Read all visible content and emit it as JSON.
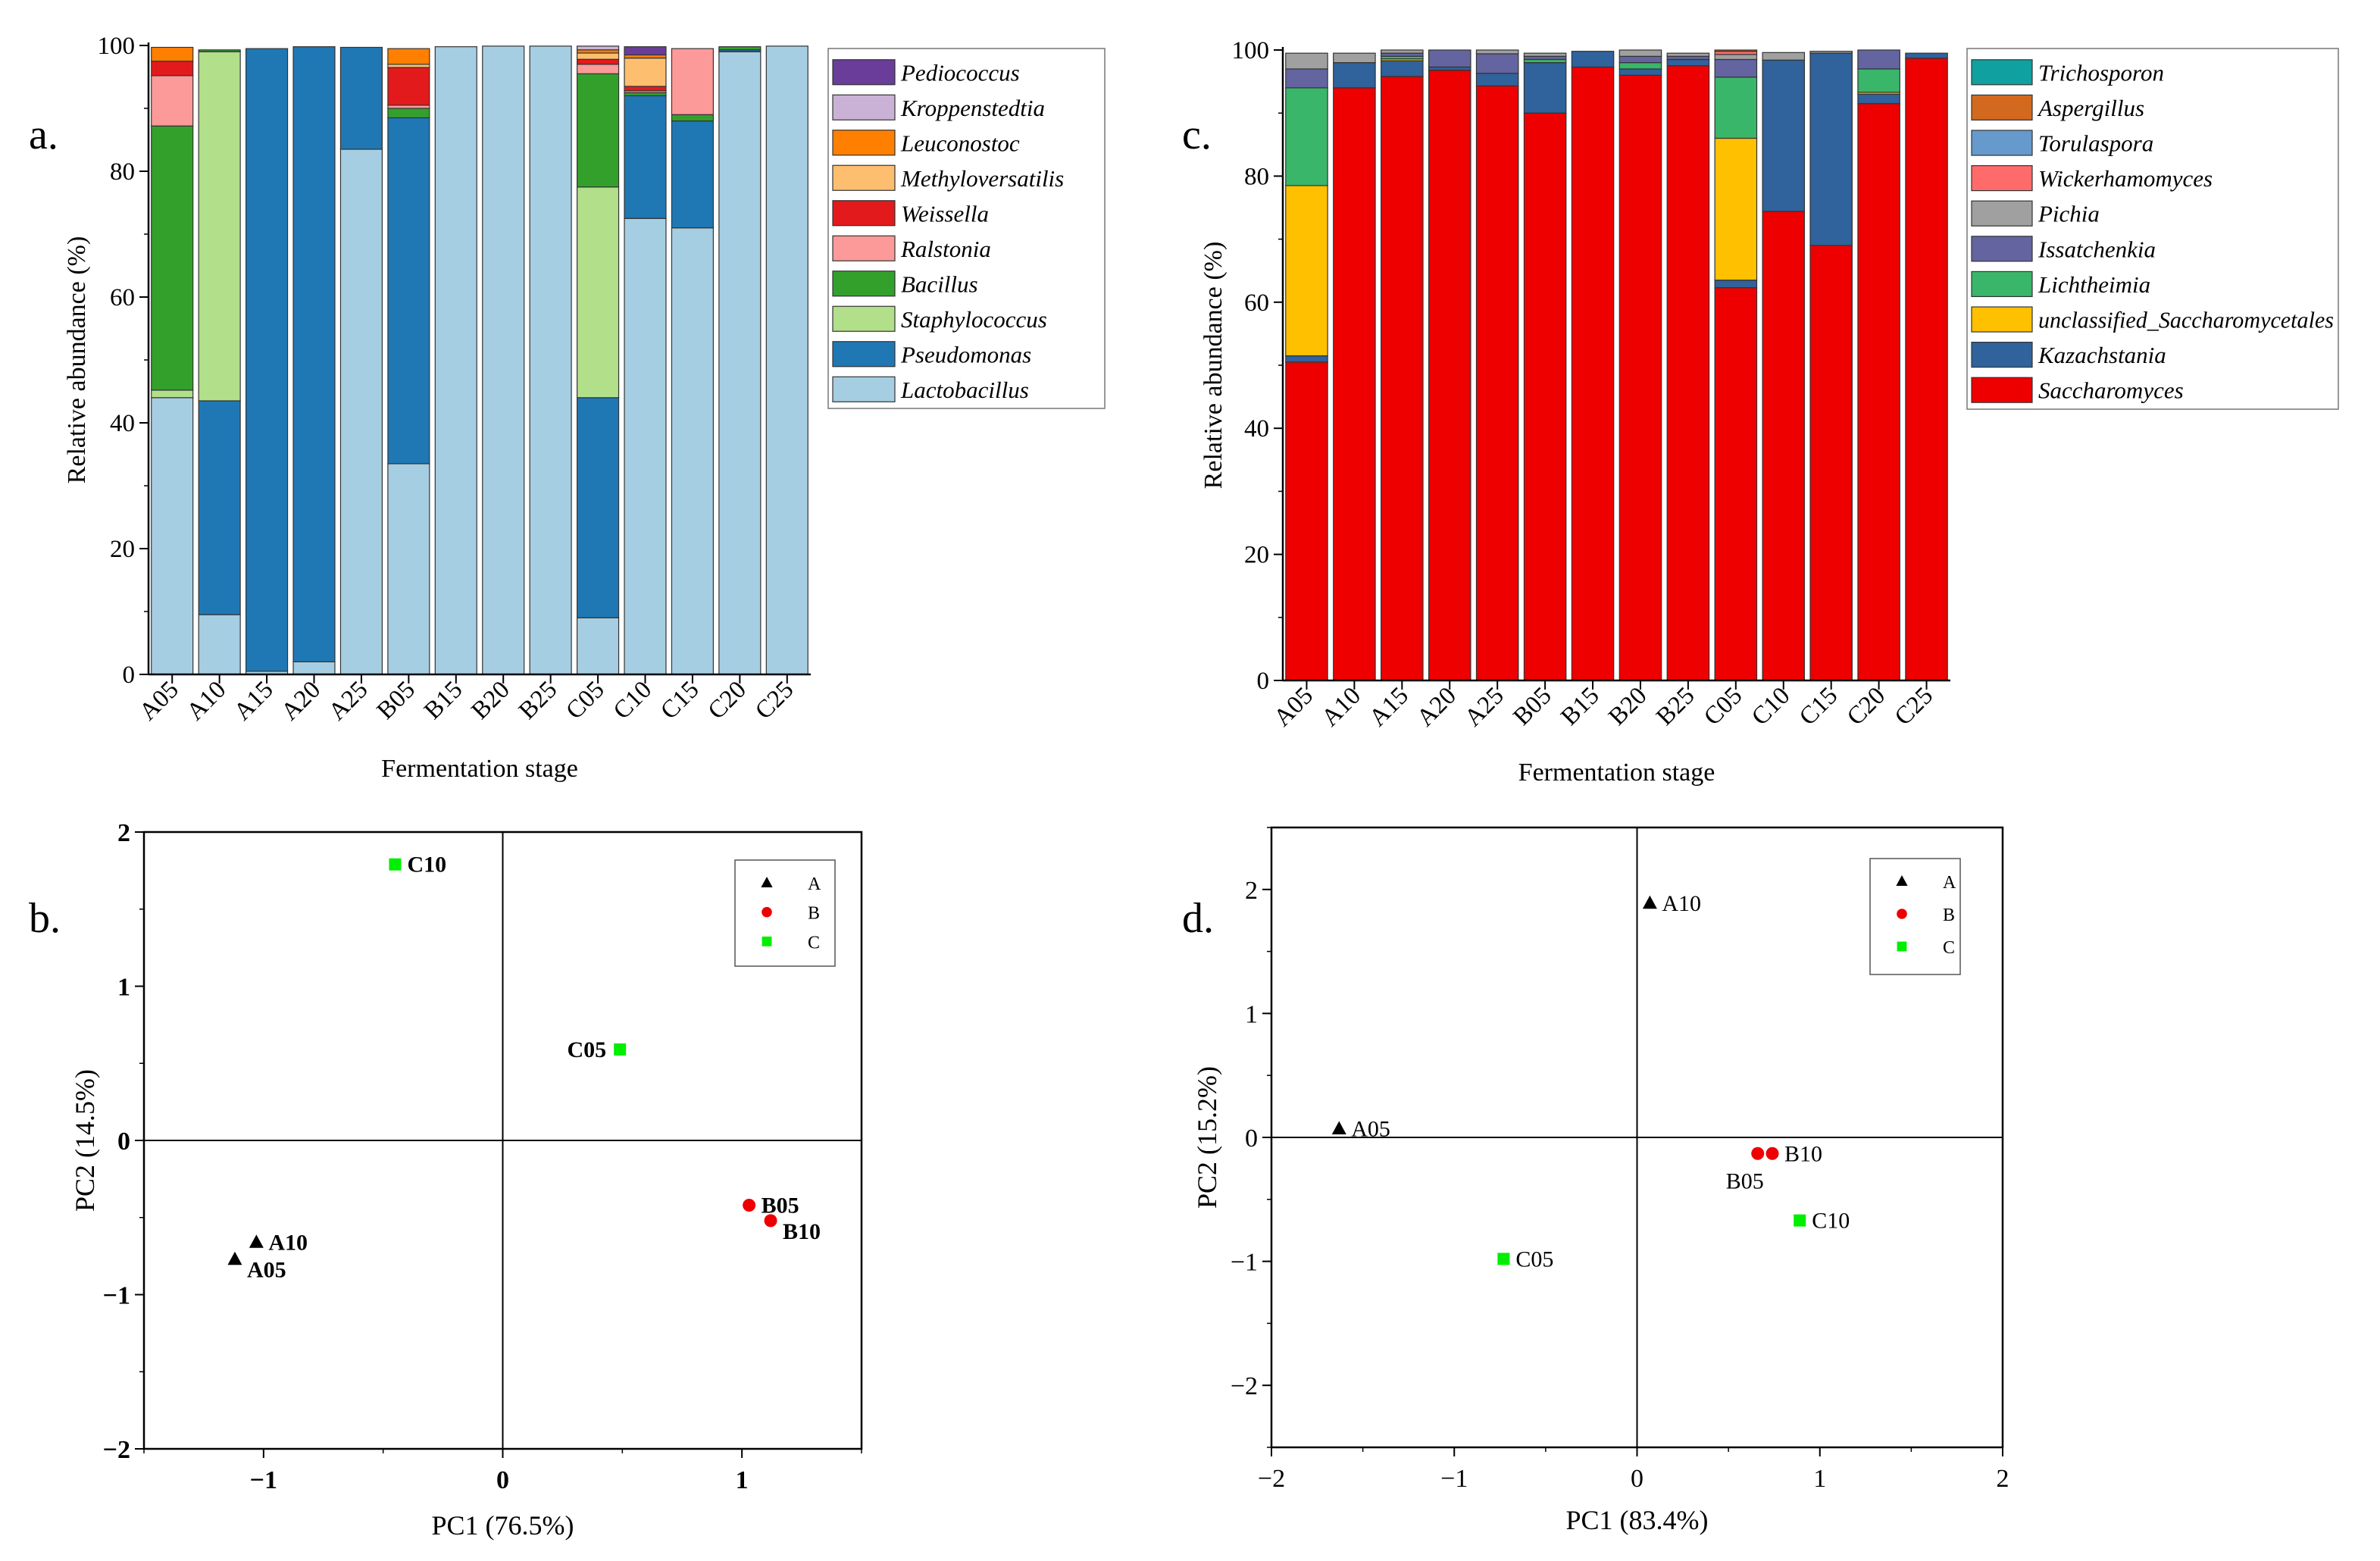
{
  "panel_labels": {
    "a": "a.",
    "b": "b.",
    "c": "c.",
    "d": "d."
  },
  "chart_data": [
    {
      "id": "a",
      "type": "bar",
      "stacked": true,
      "title": "",
      "xlabel": "Fermentation stage",
      "ylabel": "Relative abundance (%)",
      "ylim": [
        0,
        100
      ],
      "yticks": [
        "0",
        "20",
        "40",
        "60",
        "80",
        "100"
      ],
      "categories": [
        "A05",
        "A10",
        "A15",
        "A20",
        "A25",
        "B05",
        "B15",
        "B20",
        "B25",
        "C05",
        "C10",
        "C15",
        "C20",
        "C25"
      ],
      "legend_position": "top-right",
      "series": [
        {
          "name": "Lactobacillus",
          "color": "#a6cee3",
          "values": [
            44,
            9.5,
            0.5,
            2,
            83.5,
            33.5,
            99.8,
            99.9,
            99.9,
            9,
            72.5,
            71,
            99,
            99.9
          ]
        },
        {
          "name": "Pseudomonas",
          "color": "#1f78b4",
          "values": [
            0,
            34,
            99,
            97.8,
            16.2,
            55,
            0,
            0,
            0,
            35,
            19.5,
            17,
            0.3,
            0
          ]
        },
        {
          "name": "Staphylococcus",
          "color": "#b2df8a",
          "values": [
            1.2,
            55.5,
            0,
            0,
            0,
            0,
            0,
            0,
            0,
            33.5,
            0,
            0,
            0,
            0
          ]
        },
        {
          "name": "Bacillus",
          "color": "#33a02c",
          "values": [
            42,
            0.3,
            0,
            0,
            0,
            1.5,
            0,
            0,
            0,
            18,
            0.5,
            1,
            0.5,
            0
          ]
        },
        {
          "name": "Ralstonia",
          "color": "#fb9a99",
          "values": [
            8,
            0,
            0,
            0,
            0,
            0.5,
            0,
            0,
            0,
            1.5,
            0.3,
            10.5,
            0,
            0
          ]
        },
        {
          "name": "Weissella",
          "color": "#e31a1c",
          "values": [
            2.3,
            0,
            0,
            0,
            0,
            6,
            0,
            0,
            0,
            0.8,
            0.7,
            0,
            0,
            0
          ]
        },
        {
          "name": "Methyloversatilis",
          "color": "#fdbf6f",
          "values": [
            0,
            0,
            0,
            0,
            0,
            0.5,
            0,
            0,
            0,
            1,
            4.5,
            0,
            0,
            0
          ]
        },
        {
          "name": "Leuconostoc",
          "color": "#ff7f00",
          "values": [
            2.2,
            0,
            0,
            0,
            0,
            2.5,
            0,
            0,
            0,
            0.5,
            0.5,
            0,
            0,
            0
          ]
        },
        {
          "name": "Kroppenstedtia",
          "color": "#cab2d6",
          "values": [
            0,
            0,
            0,
            0,
            0,
            0,
            0,
            0,
            0,
            0.6,
            0,
            0,
            0,
            0
          ]
        },
        {
          "name": "Pediococcus",
          "color": "#6a3d9a",
          "values": [
            0,
            0,
            0,
            0,
            0,
            0,
            0,
            0,
            0,
            0,
            1.3,
            0,
            0,
            0
          ]
        }
      ]
    },
    {
      "id": "c",
      "type": "bar",
      "stacked": true,
      "title": "",
      "xlabel": "Fermentation stage",
      "ylabel": "Relative abundance (%)",
      "ylim": [
        0,
        100
      ],
      "yticks": [
        "0",
        "20",
        "40",
        "60",
        "80",
        "100"
      ],
      "categories": [
        "A05",
        "A10",
        "A15",
        "A20",
        "A25",
        "B05",
        "B15",
        "B20",
        "B25",
        "C05",
        "C10",
        "C15",
        "C20",
        "C25"
      ],
      "legend_position": "top-right",
      "series": [
        {
          "name": "Saccharomyces",
          "color": "#ee0000",
          "values": [
            50.5,
            94,
            95.8,
            96.8,
            94.3,
            90,
            97.3,
            96,
            97.5,
            62.3,
            74.4,
            69,
            91.5,
            98.7
          ]
        },
        {
          "name": "Kazachstania",
          "color": "#30629b",
          "values": [
            1,
            4,
            2.5,
            0.5,
            2,
            8,
            2.5,
            1,
            1,
            1.2,
            24,
            30.5,
            1.5,
            0.8
          ]
        },
        {
          "name": "unclassified_Saccharomycetales",
          "color": "#ffc000",
          "values": [
            27,
            0,
            0.3,
            0,
            0,
            0,
            0,
            0,
            0,
            22.5,
            0,
            0,
            0.3,
            0
          ]
        },
        {
          "name": "Lichtheimia",
          "color": "#3ab66b",
          "values": [
            15.5,
            0,
            0.4,
            0,
            0,
            0.5,
            0,
            1,
            0,
            9.7,
            0,
            0,
            3.7,
            0
          ]
        },
        {
          "name": "Issatchenkia",
          "color": "#6464a0",
          "values": [
            3,
            0,
            0.5,
            2.7,
            3.1,
            0.5,
            0,
            1,
            0.5,
            2.8,
            0,
            0,
            3,
            0
          ]
        },
        {
          "name": "Pichia",
          "color": "#a0a0a0",
          "values": [
            2.5,
            1.5,
            0.5,
            0,
            0.6,
            0.5,
            0,
            1,
            0.5,
            0.8,
            1.2,
            0.3,
            0,
            0
          ]
        },
        {
          "name": "Wickerhamomyces",
          "color": "#ff6b6b",
          "values": [
            0,
            0,
            0,
            0,
            0,
            0,
            0,
            0,
            0,
            0.5,
            0,
            0,
            0,
            0
          ]
        },
        {
          "name": "Torulaspora",
          "color": "#6699cc",
          "values": [
            0,
            0,
            0,
            0,
            0,
            0,
            0,
            0,
            0,
            0,
            0,
            0,
            0,
            0
          ]
        },
        {
          "name": "Aspergillus",
          "color": "#d2691e",
          "values": [
            0,
            0,
            0,
            0,
            0,
            0,
            0,
            0,
            0,
            0.2,
            0,
            0,
            0,
            0
          ]
        },
        {
          "name": "Trichosporon",
          "color": "#11a0a0",
          "values": [
            0,
            0,
            0,
            0,
            0,
            0,
            0,
            0,
            0,
            0,
            0,
            0,
            0,
            0
          ]
        }
      ]
    },
    {
      "id": "b",
      "type": "scatter",
      "title": "",
      "xlabel": "PC1 (76.5%)",
      "ylabel": "PC2 (14.5%)",
      "xlim": [
        -1.5,
        1.5
      ],
      "ylim": [
        -2,
        2
      ],
      "xticks": [
        {
          "v": -1,
          "t": "−1"
        },
        {
          "v": 0,
          "t": "0"
        },
        {
          "v": 1,
          "t": "1"
        }
      ],
      "yticks": [
        {
          "v": -2,
          "t": "−2"
        },
        {
          "v": -1,
          "t": "−1"
        },
        {
          "v": 0,
          "t": "0"
        },
        {
          "v": 1,
          "t": "1"
        },
        {
          "v": 2,
          "t": "2"
        }
      ],
      "legend_position": "top-right",
      "groups": [
        {
          "name": "A",
          "marker": "triangle",
          "color": "#000000"
        },
        {
          "name": "B",
          "marker": "circle",
          "color": "#ee0000"
        },
        {
          "name": "C",
          "marker": "square",
          "color": "#00ee00"
        }
      ],
      "points": [
        {
          "label": "A10",
          "group": "A",
          "x": -1.03,
          "y": -0.66,
          "label_side": "right"
        },
        {
          "label": "A05",
          "group": "A",
          "x": -1.12,
          "y": -0.77,
          "label_side": "right-below"
        },
        {
          "label": "B05",
          "group": "B",
          "x": 1.03,
          "y": -0.42,
          "label_side": "right"
        },
        {
          "label": "B10",
          "group": "B",
          "x": 1.12,
          "y": -0.52,
          "label_side": "right-below"
        },
        {
          "label": "C10",
          "group": "C",
          "x": -0.45,
          "y": 1.79,
          "label_side": "right"
        },
        {
          "label": "C05",
          "group": "C",
          "x": 0.49,
          "y": 0.59,
          "label_side": "left"
        }
      ]
    },
    {
      "id": "d",
      "type": "scatter",
      "title": "",
      "xlabel": "PC1 (83.4%)",
      "ylabel": "PC2 (15.2%)",
      "xlim": [
        -2,
        2
      ],
      "ylim": [
        -2.5,
        2.5
      ],
      "xticks": [
        {
          "v": -2,
          "t": "−2"
        },
        {
          "v": -1,
          "t": "−1"
        },
        {
          "v": 0,
          "t": "0"
        },
        {
          "v": 1,
          "t": "1"
        },
        {
          "v": 2,
          "t": "2"
        }
      ],
      "yticks": [
        {
          "v": -2,
          "t": "−2"
        },
        {
          "v": -1,
          "t": "−1"
        },
        {
          "v": 0,
          "t": "0"
        },
        {
          "v": 1,
          "t": "1"
        },
        {
          "v": 2,
          "t": "2"
        }
      ],
      "legend_position": "top-right",
      "groups": [
        {
          "name": "A",
          "marker": "triangle",
          "color": "#000000"
        },
        {
          "name": "B",
          "marker": "circle",
          "color": "#ee0000"
        },
        {
          "name": "C",
          "marker": "square",
          "color": "#00ee00"
        }
      ],
      "points": [
        {
          "label": "A10",
          "group": "A",
          "x": 0.07,
          "y": 1.89,
          "label_side": "right"
        },
        {
          "label": "A05",
          "group": "A",
          "x": -1.63,
          "y": 0.07,
          "label_side": "right"
        },
        {
          "label": "B05",
          "group": "B",
          "x": 0.66,
          "y": -0.13,
          "label_side": "below-left"
        },
        {
          "label": "B10",
          "group": "B",
          "x": 0.74,
          "y": -0.13,
          "label_side": "right"
        },
        {
          "label": "C10",
          "group": "C",
          "x": 0.89,
          "y": -0.67,
          "label_side": "right"
        },
        {
          "label": "C05",
          "group": "C",
          "x": -0.73,
          "y": -0.98,
          "label_side": "right"
        }
      ]
    }
  ]
}
